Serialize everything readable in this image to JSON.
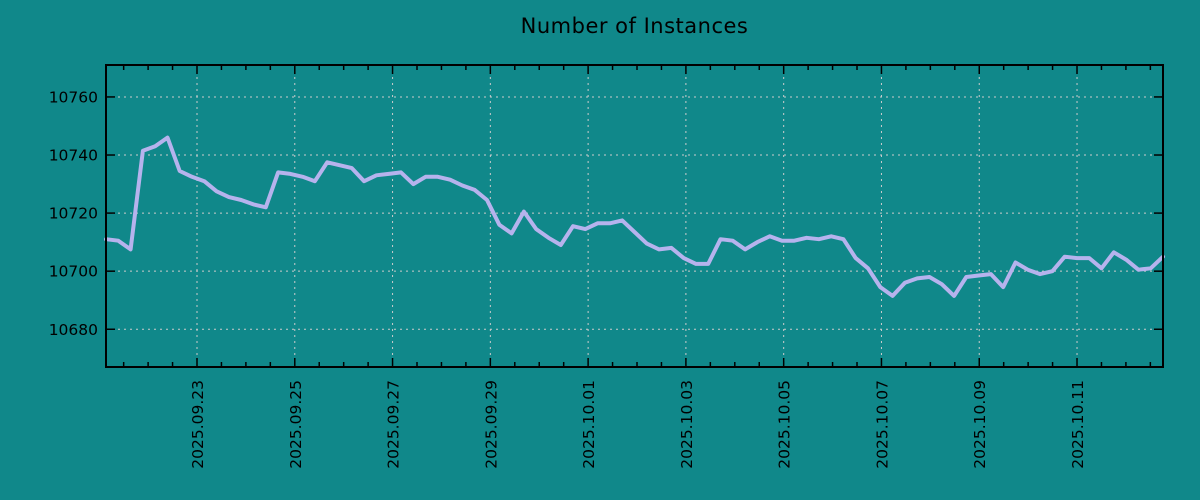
{
  "colors": {
    "background": "#10888a",
    "line": "#b6b3ed",
    "grid": "#cccccc",
    "axis": "#000000",
    "text": "#000000"
  },
  "chart_data": {
    "type": "line",
    "title": "Number of Instances",
    "xlabel": "",
    "ylabel": "",
    "legend": "none",
    "grid": "dashed",
    "x_start": "2025-09-21 03:00",
    "x_interval_hours": 6,
    "x_tick_labels": [
      "2025.09.23",
      "2025.09.25",
      "2025.09.27",
      "2025.09.29",
      "2025.10.01",
      "2025.10.03",
      "2025.10.05",
      "2025.10.07",
      "2025.10.09",
      "2025.10.11"
    ],
    "x_minor_per_major": 4,
    "y_ticks": [
      "10680",
      "10700",
      "10720",
      "10740",
      "10760"
    ],
    "ylim": [
      10667,
      10771
    ],
    "series": [
      {
        "name": "Number of Instances",
        "color": "#b6b3ed",
        "values": [
          10711,
          10710.5,
          10707.5,
          10741.5,
          10743,
          10746,
          10734.5,
          10732.5,
          10731,
          10727.5,
          10725.5,
          10724.5,
          10723,
          10722,
          10734,
          10733.5,
          10732.5,
          10731,
          10737.5,
          10736.5,
          10735.5,
          10731,
          10733,
          10733.5,
          10734,
          10730,
          10732.5,
          10732.5,
          10731.5,
          10729.5,
          10728,
          10724.5,
          10716,
          10713,
          10720.5,
          10714.5,
          10711.5,
          10709,
          10715.5,
          10714.5,
          10716.5,
          10716.5,
          10717.5,
          10713.5,
          10709.5,
          10707.5,
          10708,
          10704.5,
          10702.5,
          10702.5,
          10711,
          10710.5,
          10707.5,
          10710,
          10712,
          10710.5,
          10710.5,
          10711.5,
          10711,
          10712,
          10711,
          10704.5,
          10701,
          10694.5,
          10691.5,
          10696,
          10697.5,
          10698,
          10695.5,
          10691.5,
          10698,
          10698.5,
          10699,
          10694.5,
          10703,
          10700.5,
          10699,
          10700,
          10705,
          10704.5,
          10704.5,
          10701,
          10706.5,
          10704,
          10700.5,
          10701,
          10705
        ]
      }
    ]
  }
}
